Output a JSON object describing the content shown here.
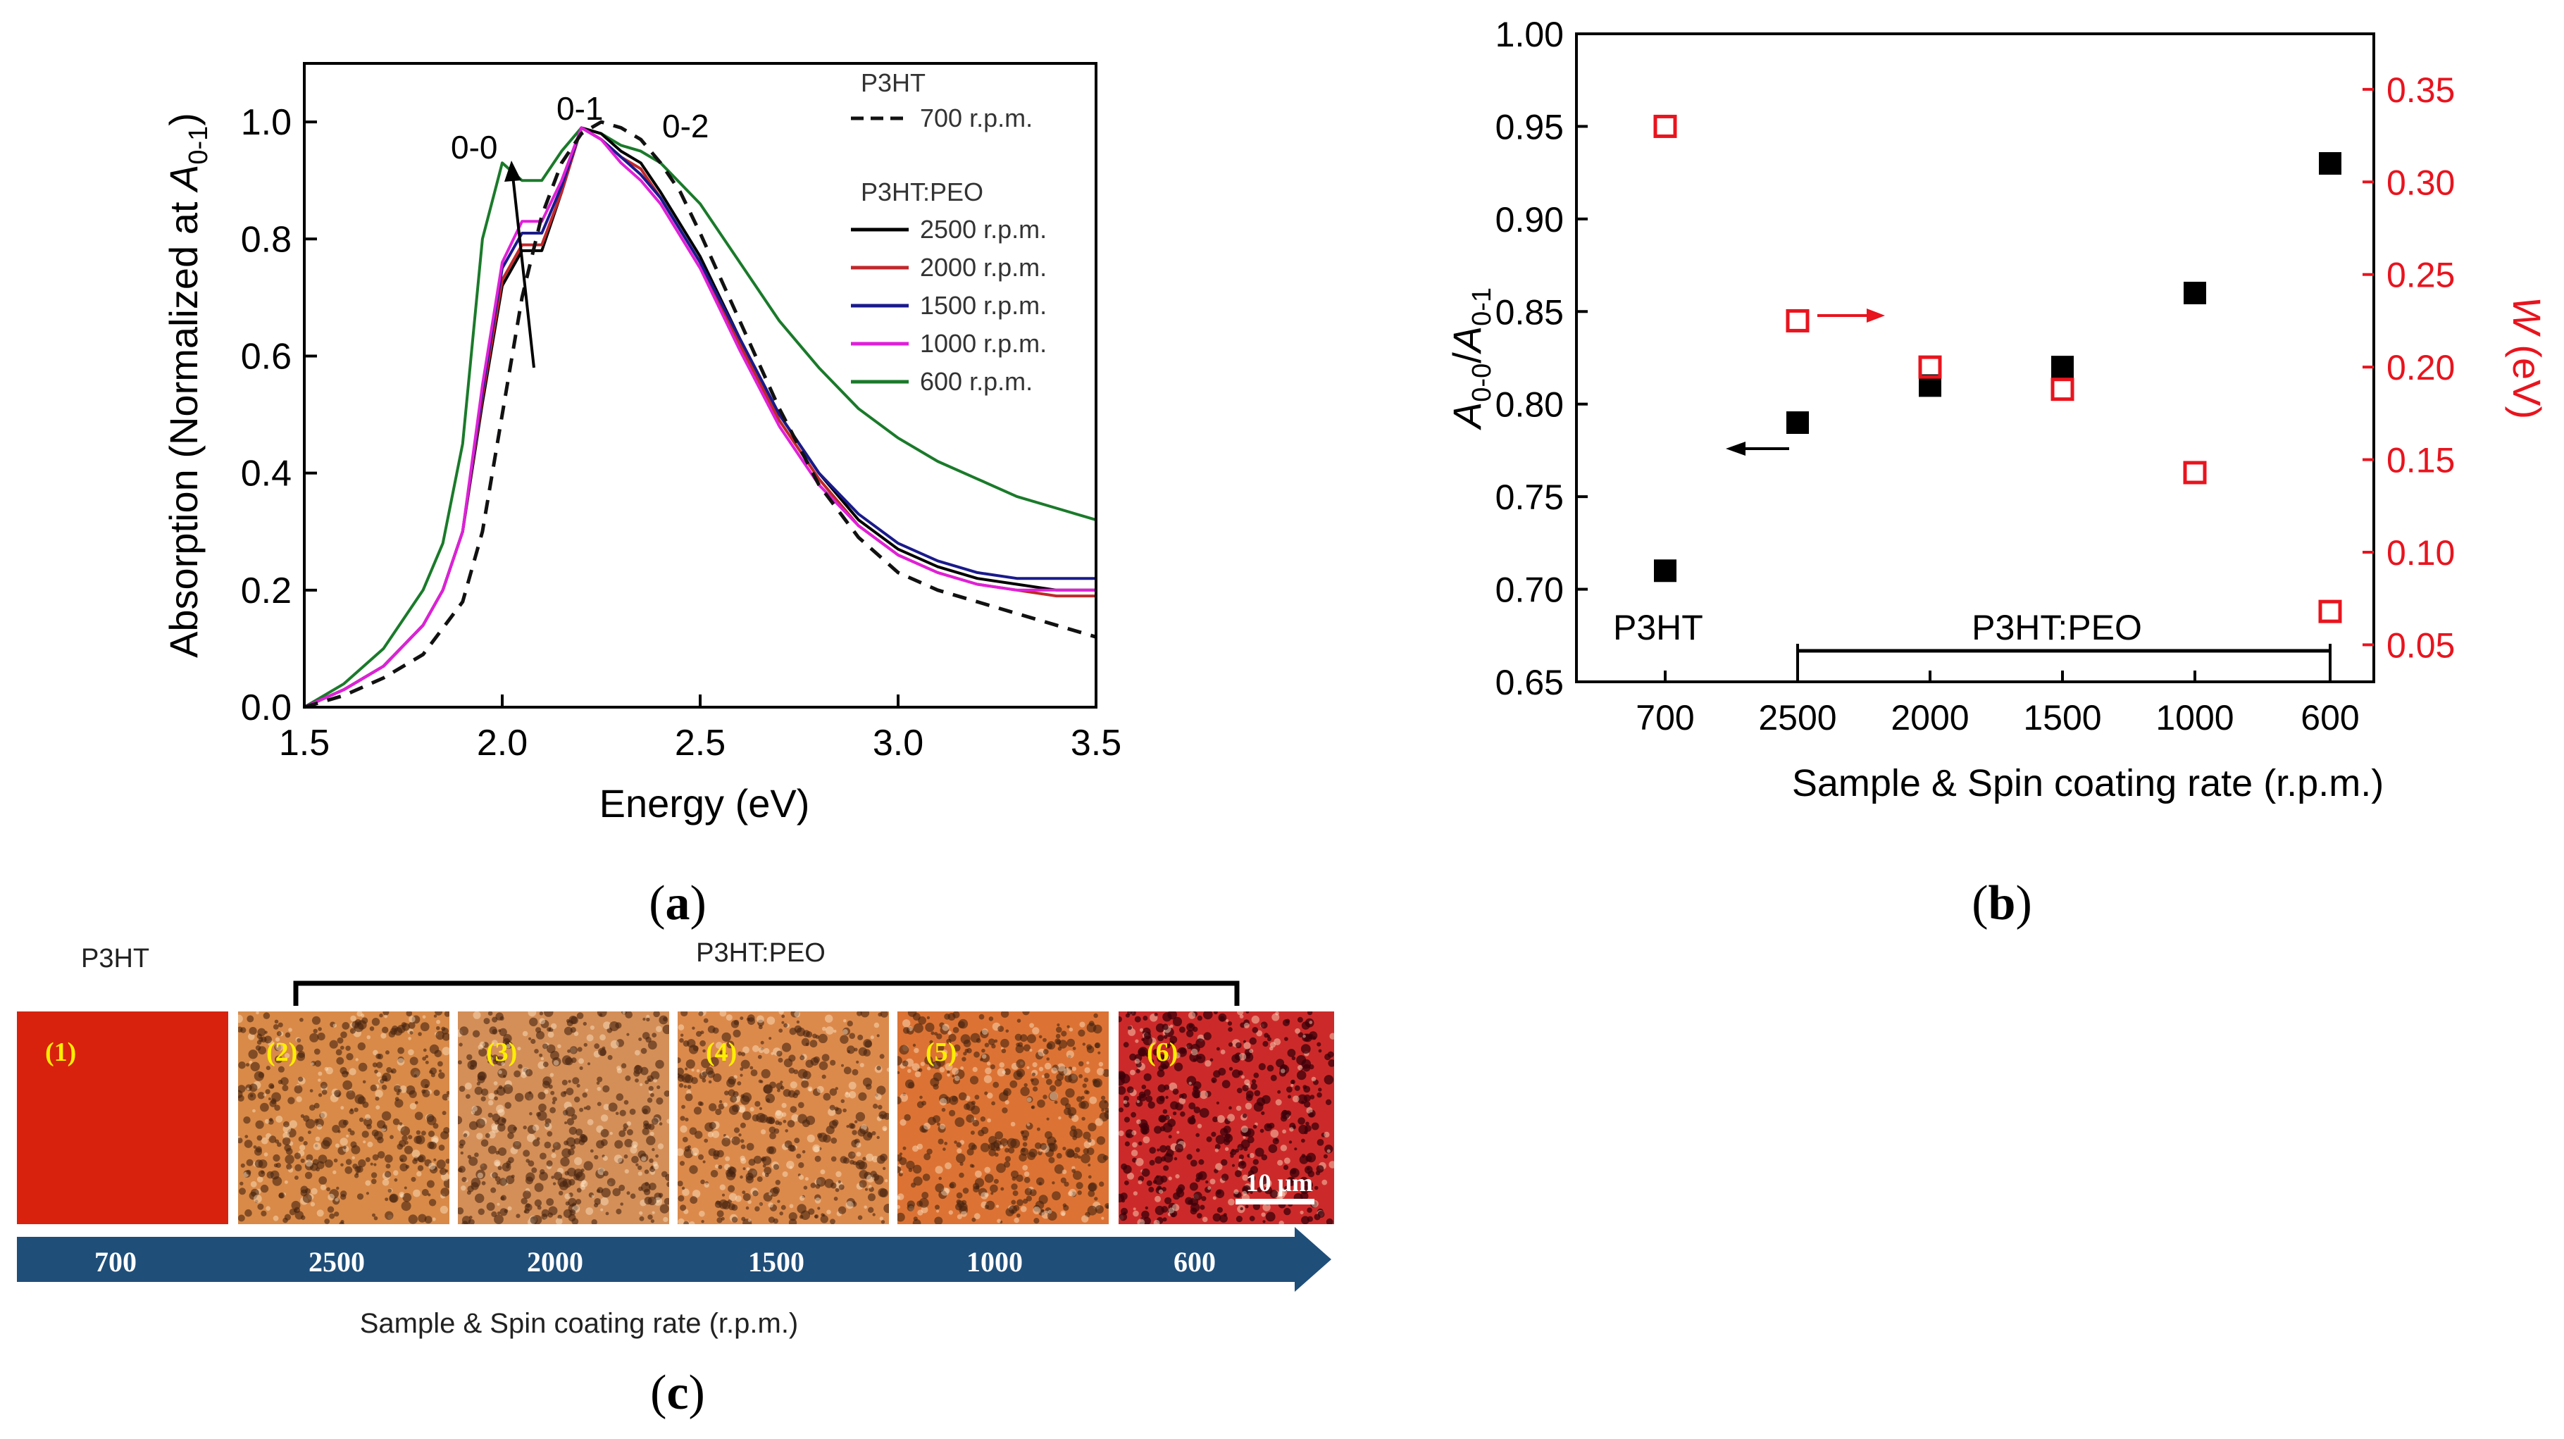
{
  "captions": {
    "a": "a",
    "b": "b",
    "c": "c"
  },
  "chart_data": [
    {
      "type": "line",
      "panel": "a",
      "xlabel": "Energy (eV)",
      "ylabel": "Absorption (Normalized at A0-1)",
      "ylabel_main": "Absorption (Normalized at ",
      "ylabel_var": "A",
      "ylabel_sub": "0-1",
      "ylabel_end": ")",
      "xlim": [
        1.5,
        3.5
      ],
      "ylim": [
        0.0,
        1.1
      ],
      "xticks": [
        1.5,
        2.0,
        2.5,
        3.0,
        3.5
      ],
      "yticks": [
        0.0,
        0.2,
        0.4,
        0.6,
        0.8,
        1.0
      ],
      "annotations": [
        "0-0",
        "0-1",
        "0-2"
      ],
      "legend": {
        "position": "top-right",
        "group1_title": "P3HT",
        "group2_title": "P3HT:PEO"
      },
      "series": [
        {
          "name": "700 r.p.m.",
          "group": "P3HT",
          "color": "#111111",
          "dash": true,
          "x": [
            1.5,
            1.6,
            1.7,
            1.8,
            1.9,
            1.95,
            2.0,
            2.05,
            2.1,
            2.15,
            2.2,
            2.25,
            2.3,
            2.35,
            2.4,
            2.45,
            2.5,
            2.6,
            2.7,
            2.8,
            2.9,
            3.0,
            3.1,
            3.2,
            3.3,
            3.4,
            3.5
          ],
          "y": [
            0.0,
            0.02,
            0.05,
            0.09,
            0.18,
            0.3,
            0.5,
            0.7,
            0.84,
            0.93,
            0.98,
            1.0,
            0.99,
            0.97,
            0.93,
            0.88,
            0.81,
            0.66,
            0.51,
            0.38,
            0.29,
            0.23,
            0.2,
            0.18,
            0.16,
            0.14,
            0.12
          ]
        },
        {
          "name": "2500 r.p.m.",
          "group": "P3HT:PEO",
          "color": "#000000",
          "dash": false,
          "x": [
            1.5,
            1.6,
            1.7,
            1.8,
            1.85,
            1.9,
            1.95,
            2.0,
            2.05,
            2.1,
            2.15,
            2.2,
            2.25,
            2.3,
            2.35,
            2.4,
            2.5,
            2.6,
            2.7,
            2.8,
            2.9,
            3.0,
            3.1,
            3.2,
            3.3,
            3.4,
            3.5
          ],
          "y": [
            0.0,
            0.03,
            0.07,
            0.14,
            0.2,
            0.3,
            0.52,
            0.72,
            0.78,
            0.78,
            0.88,
            0.99,
            0.98,
            0.95,
            0.93,
            0.88,
            0.77,
            0.63,
            0.5,
            0.4,
            0.32,
            0.27,
            0.24,
            0.22,
            0.21,
            0.2,
            0.2
          ]
        },
        {
          "name": "2000 r.p.m.",
          "group": "P3HT:PEO",
          "color": "#c0282b",
          "dash": false,
          "x": [
            1.5,
            1.6,
            1.7,
            1.8,
            1.85,
            1.9,
            1.95,
            2.0,
            2.05,
            2.1,
            2.15,
            2.2,
            2.25,
            2.3,
            2.35,
            2.4,
            2.5,
            2.6,
            2.7,
            2.8,
            2.9,
            3.0,
            3.1,
            3.2,
            3.3,
            3.4,
            3.5
          ],
          "y": [
            0.0,
            0.03,
            0.07,
            0.14,
            0.2,
            0.3,
            0.53,
            0.73,
            0.79,
            0.79,
            0.88,
            0.99,
            0.97,
            0.94,
            0.92,
            0.87,
            0.76,
            0.62,
            0.49,
            0.39,
            0.31,
            0.26,
            0.23,
            0.21,
            0.2,
            0.19,
            0.19
          ]
        },
        {
          "name": "1500 r.p.m.",
          "group": "P3HT:PEO",
          "color": "#1a1a8c",
          "dash": false,
          "x": [
            1.5,
            1.6,
            1.7,
            1.8,
            1.85,
            1.9,
            1.95,
            2.0,
            2.05,
            2.1,
            2.15,
            2.2,
            2.25,
            2.3,
            2.35,
            2.4,
            2.5,
            2.6,
            2.7,
            2.8,
            2.9,
            3.0,
            3.1,
            3.2,
            3.3,
            3.4,
            3.5
          ],
          "y": [
            0.0,
            0.03,
            0.07,
            0.14,
            0.2,
            0.3,
            0.54,
            0.75,
            0.81,
            0.81,
            0.89,
            0.99,
            0.97,
            0.94,
            0.91,
            0.87,
            0.76,
            0.63,
            0.5,
            0.4,
            0.33,
            0.28,
            0.25,
            0.23,
            0.22,
            0.22,
            0.22
          ]
        },
        {
          "name": "1000 r.p.m.",
          "group": "P3HT:PEO",
          "color": "#e020d8",
          "dash": false,
          "x": [
            1.5,
            1.6,
            1.7,
            1.8,
            1.85,
            1.9,
            1.95,
            2.0,
            2.05,
            2.1,
            2.15,
            2.2,
            2.25,
            2.3,
            2.35,
            2.4,
            2.5,
            2.6,
            2.7,
            2.8,
            2.9,
            3.0,
            3.1,
            3.2,
            3.3,
            3.4,
            3.5
          ],
          "y": [
            0.0,
            0.03,
            0.07,
            0.14,
            0.2,
            0.3,
            0.55,
            0.76,
            0.83,
            0.83,
            0.9,
            0.99,
            0.97,
            0.93,
            0.9,
            0.86,
            0.75,
            0.61,
            0.48,
            0.38,
            0.31,
            0.26,
            0.23,
            0.21,
            0.2,
            0.2,
            0.2
          ]
        },
        {
          "name": "600 r.p.m.",
          "group": "P3HT:PEO",
          "color": "#1a7a2a",
          "dash": false,
          "x": [
            1.5,
            1.6,
            1.7,
            1.8,
            1.85,
            1.9,
            1.95,
            2.0,
            2.05,
            2.1,
            2.15,
            2.2,
            2.25,
            2.3,
            2.35,
            2.4,
            2.5,
            2.6,
            2.7,
            2.8,
            2.9,
            3.0,
            3.1,
            3.2,
            3.3,
            3.4,
            3.5
          ],
          "y": [
            0.0,
            0.04,
            0.1,
            0.2,
            0.28,
            0.45,
            0.8,
            0.93,
            0.9,
            0.9,
            0.95,
            0.99,
            0.98,
            0.96,
            0.95,
            0.93,
            0.86,
            0.76,
            0.66,
            0.58,
            0.51,
            0.46,
            0.42,
            0.39,
            0.36,
            0.34,
            0.32
          ]
        }
      ]
    },
    {
      "type": "scatter",
      "panel": "b",
      "xlabel": "Sample & Spin coating rate (r.p.m.)",
      "categories": [
        "700",
        "2500",
        "2000",
        "1500",
        "1000",
        "600"
      ],
      "ylabel_left": "A0-0/A0-1",
      "ylabel_left_var": "A",
      "ylabel_left_sub1": "0-0",
      "ylabel_left_slash": "/",
      "ylabel_left_sub2": "0-1",
      "ylabel_right": "W (eV)",
      "ylabel_right_var": "W",
      "ylabel_right_unit": " (eV)",
      "ylim_left": [
        0.65,
        1.0
      ],
      "ylim_right": [
        0.03,
        0.38
      ],
      "yticks_left": [
        0.65,
        0.7,
        0.75,
        0.8,
        0.85,
        0.9,
        0.95,
        1.0
      ],
      "yticks_right": [
        0.05,
        0.1,
        0.15,
        0.2,
        0.25,
        0.3,
        0.35
      ],
      "group_labels": {
        "p3ht": "P3HT",
        "peo": "P3HT:PEO"
      },
      "series": [
        {
          "name": "A0-0/A0-1",
          "axis": "left",
          "marker": "filled-square",
          "color": "#000000",
          "values": [
            0.71,
            0.79,
            0.81,
            0.82,
            0.86,
            0.93
          ]
        },
        {
          "name": "W (eV)",
          "axis": "right",
          "marker": "open-square",
          "color": "#e8141e",
          "values": [
            0.33,
            0.225,
            0.2,
            0.188,
            0.143,
            0.068
          ]
        }
      ]
    }
  ],
  "panel_c": {
    "title_left": "P3HT",
    "title_bracket": "P3HT:PEO",
    "images": [
      {
        "label": "(1)",
        "base": "#d8220e"
      },
      {
        "label": "(2)",
        "base": "#d98a48"
      },
      {
        "label": "(3)",
        "base": "#d48f58"
      },
      {
        "label": "(4)",
        "base": "#dc8a4c"
      },
      {
        "label": "(5)",
        "base": "#dc7334"
      },
      {
        "label": "(6)",
        "base": "#cc2a2a"
      }
    ],
    "scale_bar": "10 μm",
    "rates": [
      "700",
      "2500",
      "2000",
      "1500",
      "1000",
      "600"
    ],
    "arrow_color": "#1f4e79",
    "xlabel": "Sample & Spin coating rate (r.p.m.)"
  }
}
